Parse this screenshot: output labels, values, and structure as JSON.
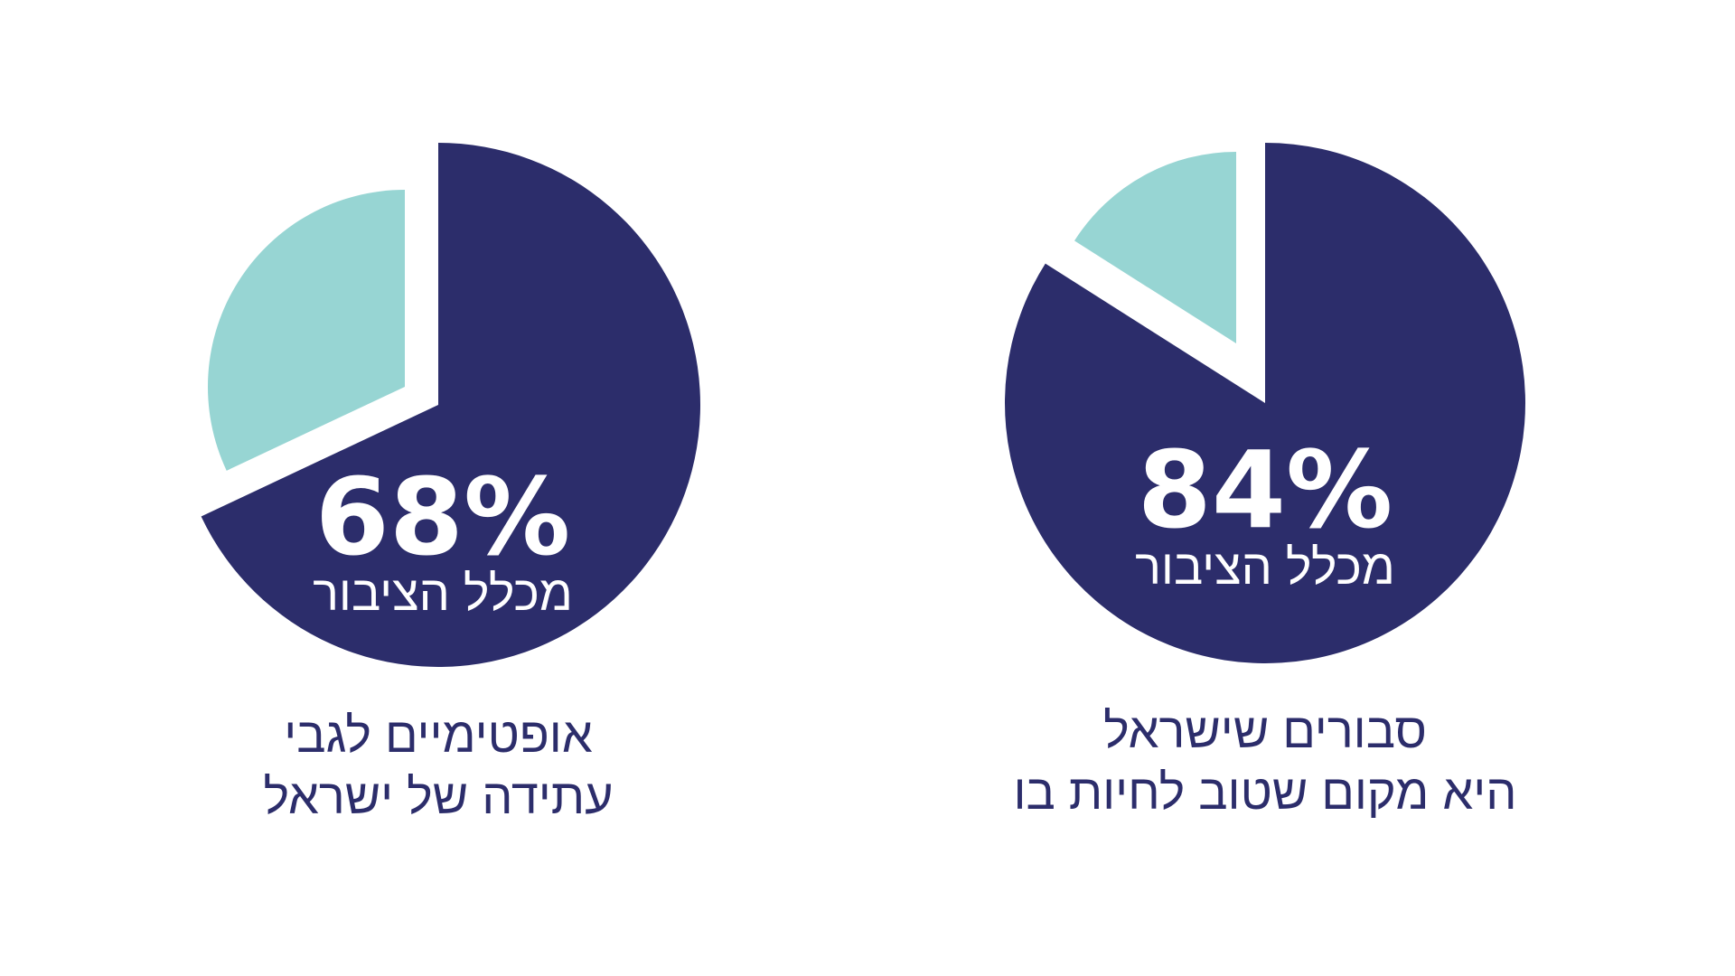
{
  "colors": {
    "primary": "#2c2d6b",
    "secondary": "#97d5d3",
    "text_on_primary": "#ffffff",
    "caption": "#2c2d6b",
    "background": "#ffffff"
  },
  "chart_data": [
    {
      "type": "pie",
      "values": [
        68,
        32
      ],
      "data_label": "68%",
      "data_sublabel": "מכלל הציבור",
      "caption_lines": [
        "אופטימיים לגבי",
        "עתידה של ישראל"
      ]
    },
    {
      "type": "pie",
      "values": [
        84,
        16
      ],
      "data_label": "84%",
      "data_sublabel": "מכלל הציבור",
      "caption_lines": [
        "סבורים שישראל",
        "היא מקום שטוב לחיות בו"
      ]
    }
  ]
}
